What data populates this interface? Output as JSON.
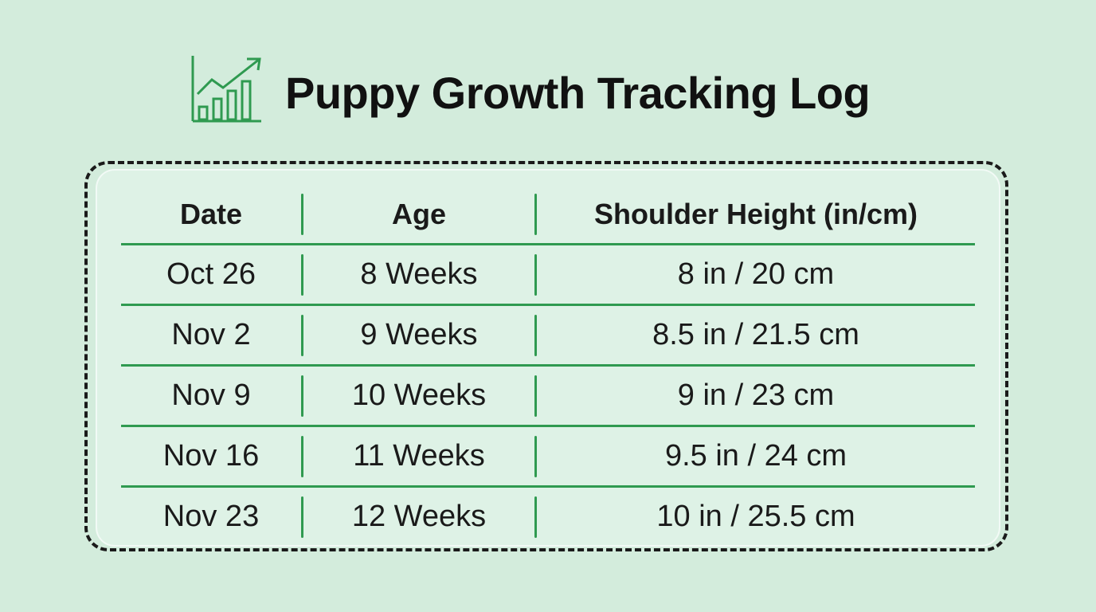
{
  "header": {
    "title": "Puppy Growth Tracking Log"
  },
  "table": {
    "columns": [
      "Date",
      "Age",
      "Shoulder Height (in/cm)"
    ],
    "rows": [
      [
        "Oct 26",
        "8 Weeks",
        "8 in / 20 cm"
      ],
      [
        "Nov 2",
        "9 Weeks",
        "8.5 in / 21.5 cm"
      ],
      [
        "Nov 9",
        "10 Weeks",
        "9 in / 23 cm"
      ],
      [
        "Nov 16",
        "11 Weeks",
        "9.5 in / 24 cm"
      ],
      [
        "Nov 23",
        "12 Weeks",
        "10 in / 25.5 cm"
      ]
    ]
  }
}
